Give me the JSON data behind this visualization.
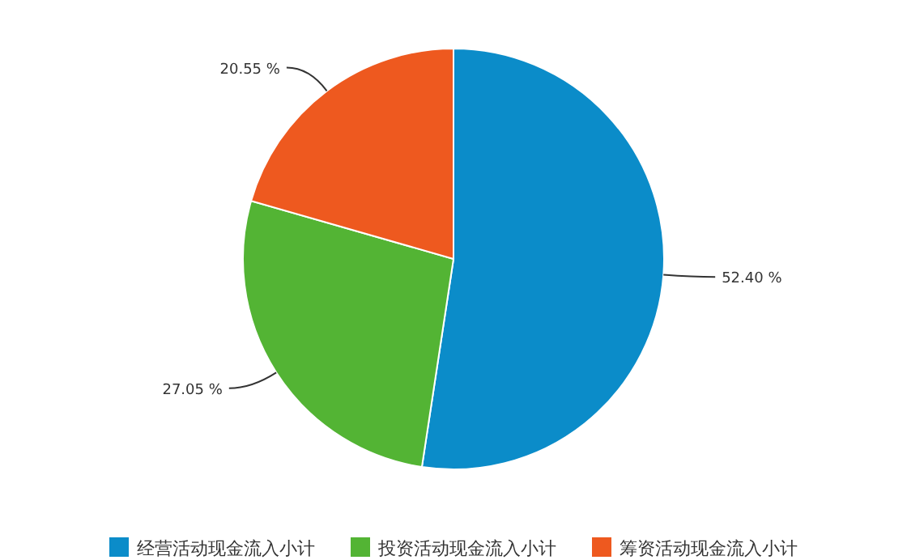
{
  "chart_data": {
    "type": "pie",
    "categories": [
      "经营活动现金流入小计",
      "投资活动现金流入小计",
      "筹资活动现金流入小计"
    ],
    "values": [
      52.4,
      27.05,
      20.55
    ],
    "colors": [
      "#0b8cc9",
      "#53b434",
      "#ee591f"
    ],
    "value_labels": [
      "52.40 %",
      "27.05 %",
      "20.55 %"
    ],
    "legend": "bottom"
  }
}
